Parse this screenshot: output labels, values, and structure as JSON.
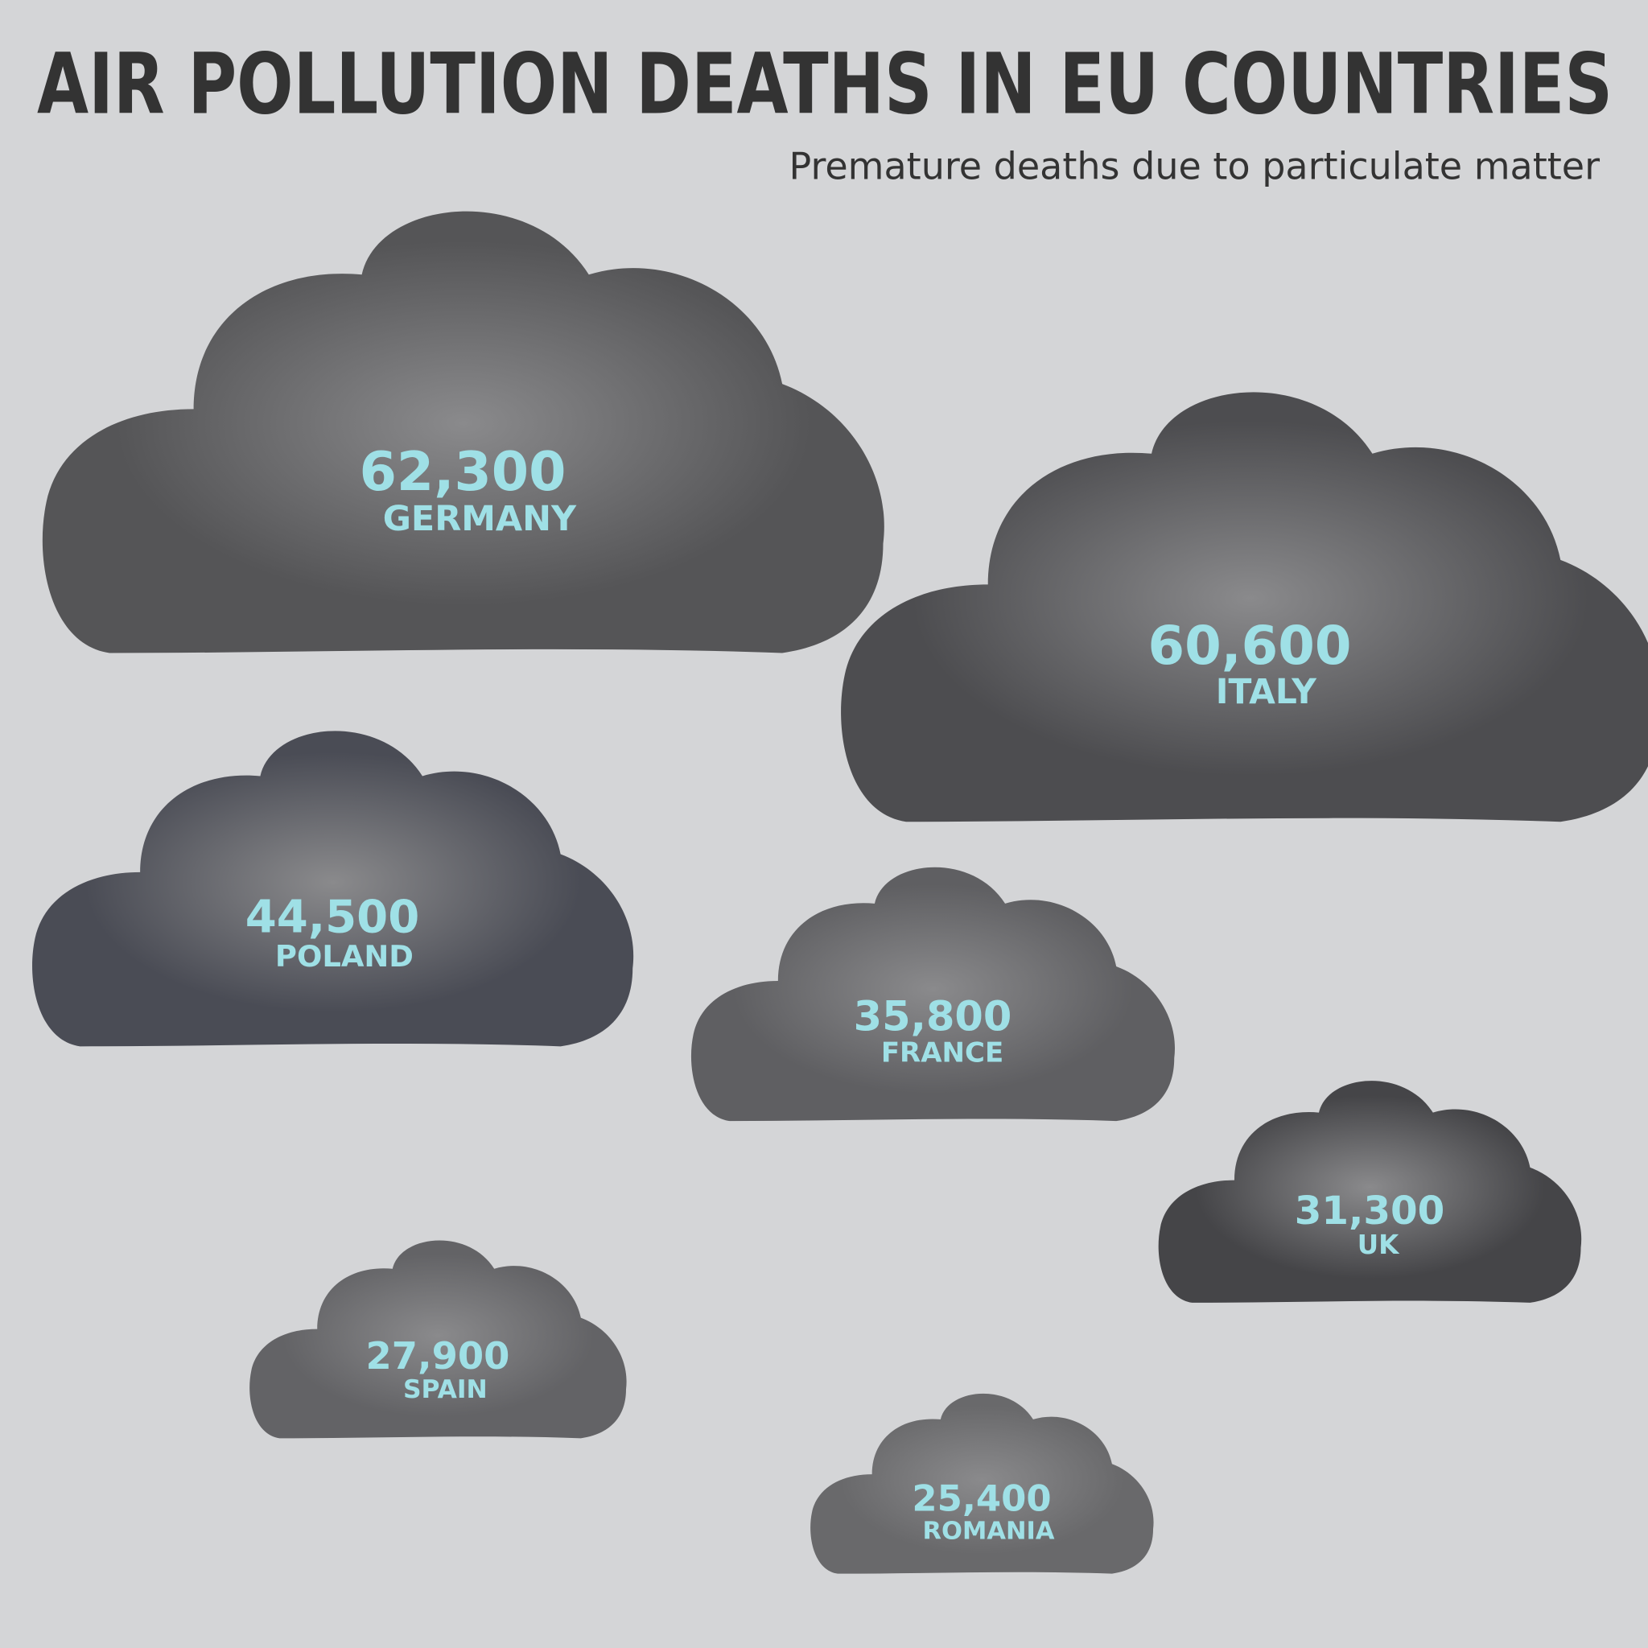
{
  "chart_data": {
    "type": "cloud",
    "title": "AIR POLLUTION DEATHS IN EU COUNTRIES",
    "subtitle": "Premature deaths due to particulate matter",
    "categories": [
      "GERMANY",
      "ITALY",
      "POLAND",
      "FRANCE",
      "UK",
      "SPAIN",
      "ROMANIA"
    ],
    "values": [
      62300,
      60600,
      44500,
      35800,
      31300,
      27900,
      25400
    ],
    "value_labels": [
      "62,300",
      "60,600",
      "44,500",
      "35,800",
      "31,300",
      "27,900",
      "25,400"
    ],
    "colors": [
      "#555557",
      "#4d4d50",
      "#4a4c55",
      "#5f5f62",
      "#454548",
      "#636366",
      "#69696b"
    ],
    "label_color": "#9fe0e6"
  }
}
